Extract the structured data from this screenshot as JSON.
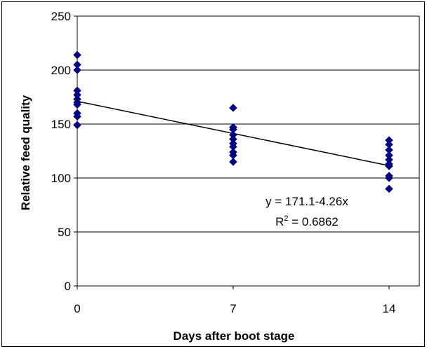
{
  "chart_data": {
    "type": "scatter",
    "xlabel": "Days after boot stage",
    "ylabel": "Relative feed quality",
    "x_ticks": [
      0,
      7,
      14
    ],
    "y_ticks": [
      0,
      50,
      100,
      150,
      200,
      250
    ],
    "xlim": [
      0,
      14
    ],
    "ylim": [
      0,
      250
    ],
    "grid": "horizontal",
    "marker": "diamond",
    "marker_color": "#000080",
    "line_color": "#000000",
    "series": [
      {
        "points": [
          [
            0,
            214
          ],
          [
            0,
            205
          ],
          [
            0,
            200
          ],
          [
            0,
            181
          ],
          [
            0,
            177
          ],
          [
            0,
            173
          ],
          [
            0,
            170
          ],
          [
            0,
            168
          ],
          [
            0,
            160
          ],
          [
            0,
            157
          ],
          [
            0,
            149
          ],
          [
            7,
            165
          ],
          [
            7,
            147
          ],
          [
            7,
            145
          ],
          [
            7,
            140
          ],
          [
            7,
            136
          ],
          [
            7,
            132
          ],
          [
            7,
            129
          ],
          [
            7,
            124
          ],
          [
            7,
            121
          ],
          [
            7,
            115
          ],
          [
            14,
            135
          ],
          [
            14,
            131
          ],
          [
            14,
            126
          ],
          [
            14,
            121
          ],
          [
            14,
            117
          ],
          [
            14,
            113
          ],
          [
            14,
            111
          ],
          [
            14,
            102
          ],
          [
            14,
            100
          ],
          [
            14,
            90
          ]
        ]
      }
    ],
    "trendline": {
      "intercept": 171.1,
      "slope": -4.26,
      "x_range": [
        0,
        14
      ]
    },
    "annotation": {
      "equation": "y = 171.1-4.26x",
      "r2_prefix": "R",
      "r2_sup": "2",
      "r2_value": " = 0.6862"
    }
  }
}
